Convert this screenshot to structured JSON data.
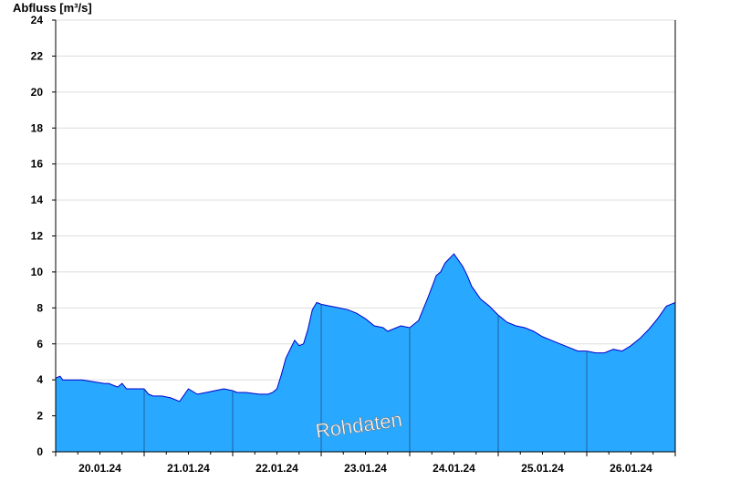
{
  "chart_data": {
    "type": "area",
    "ylabel": "Abfluss [m³/s]",
    "watermark": "Rohdaten",
    "ylim": [
      0,
      24
    ],
    "yticks": [
      0,
      2,
      4,
      6,
      8,
      10,
      12,
      14,
      16,
      18,
      20,
      22,
      24
    ],
    "xlim": [
      0,
      7
    ],
    "day_ticks": [
      "20.01.24",
      "21.01.24",
      "22.01.24",
      "23.01.24",
      "24.01.24",
      "25.01.24",
      "26.01.24"
    ],
    "grid": true,
    "colors": {
      "fill": "#29a8ff",
      "line": "#0000cc",
      "grid": "#dddddd",
      "divider": "#1f5fa0"
    },
    "series": [
      {
        "x": [
          0,
          0.05,
          0.08,
          0.3,
          0.55,
          0.6,
          0.65,
          0.7,
          0.75,
          0.8,
          1.0,
          1.05,
          1.1,
          1.2,
          1.3,
          1.4,
          1.5,
          1.6,
          1.7,
          1.8,
          1.9,
          2.0,
          2.05,
          2.15,
          2.3,
          2.4,
          2.45,
          2.5,
          2.55,
          2.6,
          2.7,
          2.75,
          2.8,
          2.85,
          2.9,
          2.95,
          3.0,
          3.1,
          3.2,
          3.3,
          3.4,
          3.5,
          3.6,
          3.7,
          3.75,
          3.8,
          3.9,
          4.0,
          4.1,
          4.2,
          4.3,
          4.35,
          4.4,
          4.5,
          4.6,
          4.65,
          4.7,
          4.8,
          4.9,
          5.0,
          5.1,
          5.2,
          5.3,
          5.4,
          5.5,
          5.6,
          5.7,
          5.8,
          5.9,
          6.0,
          6.1,
          6.2,
          6.3,
          6.4,
          6.5,
          6.6,
          6.7,
          6.8,
          6.9,
          7.0
        ],
        "y": [
          4.1,
          4.2,
          4.0,
          4.0,
          3.8,
          3.8,
          3.7,
          3.6,
          3.8,
          3.5,
          3.5,
          3.2,
          3.1,
          3.1,
          3.0,
          2.8,
          3.5,
          3.2,
          3.3,
          3.4,
          3.5,
          3.4,
          3.3,
          3.3,
          3.2,
          3.2,
          3.3,
          3.5,
          4.3,
          5.2,
          6.2,
          5.9,
          6.0,
          6.8,
          7.9,
          8.3,
          8.2,
          8.1,
          8.0,
          7.9,
          7.7,
          7.4,
          7.0,
          6.9,
          6.7,
          6.8,
          7.0,
          6.9,
          7.3,
          8.5,
          9.8,
          10.0,
          10.5,
          11.0,
          10.3,
          9.8,
          9.2,
          8.5,
          8.1,
          7.6,
          7.2,
          7.0,
          6.9,
          6.7,
          6.4,
          6.2,
          6.0,
          5.8,
          5.6,
          5.6,
          5.5,
          5.5,
          5.7,
          5.6,
          5.9,
          6.3,
          6.8,
          7.4,
          8.1,
          8.3
        ]
      }
    ]
  }
}
